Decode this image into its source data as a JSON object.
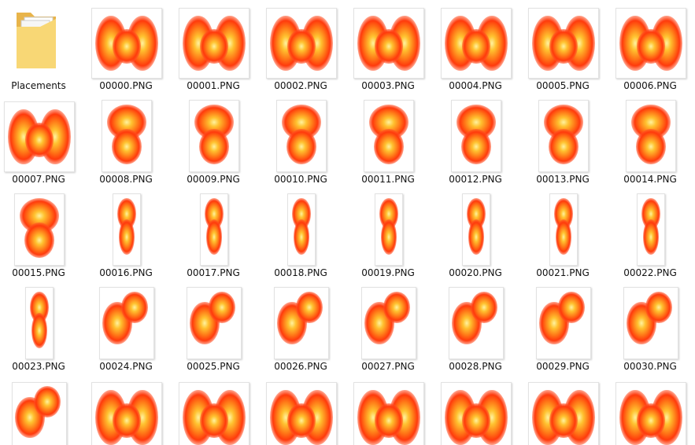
{
  "items": [
    "Placements",
    "00000.PNG",
    "00001.PNG",
    "00002.PNG",
    "00003.PNG",
    "00004.PNG",
    "00005.PNG",
    "00006.PNG",
    "00007.PNG",
    "00008.PNG",
    "00009.PNG",
    "00010.PNG",
    "00011.PNG",
    "00012.PNG",
    "00013.PNG",
    "00014.PNG",
    "00015.PNG",
    "00016.PNG",
    "00017.PNG",
    "00018.PNG",
    "00019.PNG",
    "00020.PNG",
    "00021.PNG",
    "00022.PNG",
    "00023.PNG",
    "00024.PNG",
    "00025.PNG",
    "00026.PNG",
    "00027.PNG",
    "00028.PNG",
    "00029.PNG",
    "00030.PNG"
  ]
}
